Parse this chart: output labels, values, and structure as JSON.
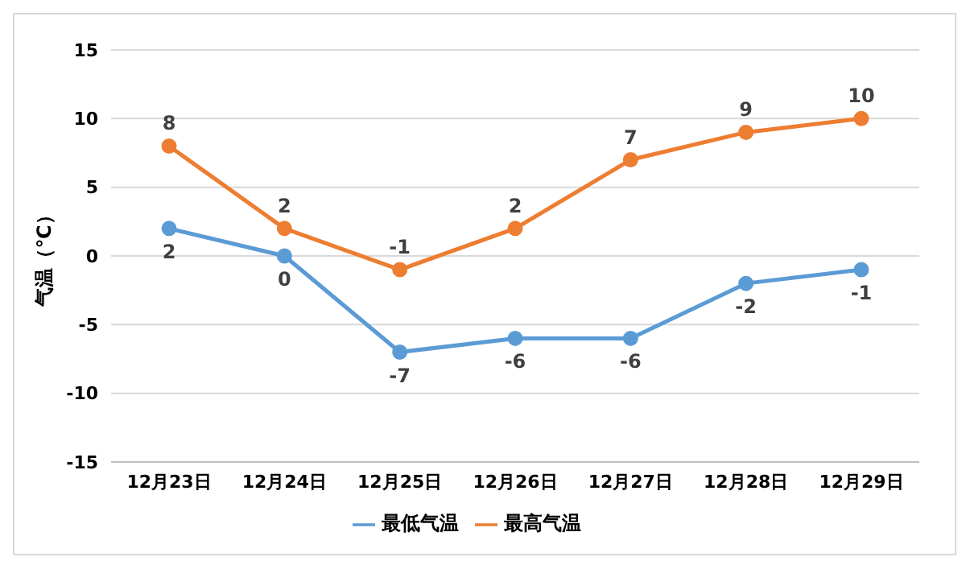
{
  "chart_data": {
    "type": "line",
    "ylabel": "气温（℃）",
    "categories": [
      "12月23日",
      "12月24日",
      "12月25日",
      "12月26日",
      "12月27日",
      "12月28日",
      "12月29日"
    ],
    "series": [
      {
        "name": "最低气温",
        "color": "#5b9bd5",
        "values": [
          2,
          0,
          -7,
          -6,
          -6,
          -2,
          -1
        ]
      },
      {
        "name": "最高气温",
        "color": "#ed7d31",
        "values": [
          8,
          2,
          -1,
          2,
          7,
          9,
          10
        ]
      }
    ],
    "ylim": [
      -15,
      15
    ],
    "yticks": [
      -15,
      -10,
      -5,
      0,
      5,
      10,
      15
    ],
    "grid": "y",
    "legend": "bottom",
    "marker": "circle",
    "line_style": "solid",
    "data_labels": true
  }
}
